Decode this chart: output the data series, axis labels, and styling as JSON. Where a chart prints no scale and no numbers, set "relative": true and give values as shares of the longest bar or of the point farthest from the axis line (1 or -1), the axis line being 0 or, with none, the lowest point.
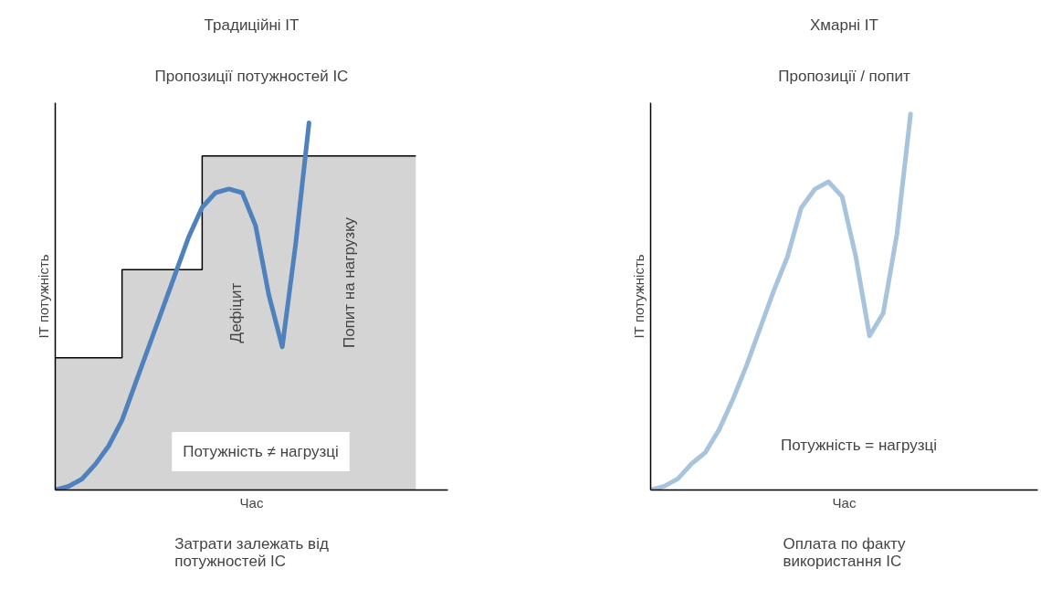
{
  "chart_data": [
    {
      "type": "line",
      "title": "Традиційні ІТ",
      "xlabel": "Час",
      "ylabel": "ІТ потужність",
      "relative": true,
      "categories": [
        null,
        null,
        null,
        null,
        null,
        null,
        null,
        null,
        null,
        null,
        null,
        null,
        null,
        null,
        null,
        null,
        null,
        null,
        null,
        null,
        null,
        null,
        null,
        null,
        null,
        null,
        null,
        null,
        null
      ],
      "series": [
        {
          "type": "area",
          "color": "#d4d4d4",
          "values": [
            0.36,
            0.36,
            0.36,
            0.36,
            0.36,
            0.6,
            0.6,
            0.6,
            0.6,
            0.6,
            0.6,
            0.91,
            0.91,
            0.91,
            0.91,
            0.91,
            0.91,
            0.91,
            0.91,
            0.91,
            0.91,
            0.91,
            0.91,
            0.91,
            0.91,
            0.91,
            0.91,
            0.91,
            null
          ]
        },
        {
          "type": "step",
          "color": "#000000",
          "values": [
            0.36,
            0.36,
            0.36,
            0.36,
            0.36,
            0.6,
            0.6,
            0.6,
            0.6,
            0.6,
            0.6,
            0.91,
            0.91,
            0.91,
            0.91,
            0.91,
            0.91,
            0.91,
            0.91,
            0.91,
            0.91,
            0.91,
            0.91,
            0.91,
            0.91,
            0.91,
            0.91,
            0.91,
            null
          ]
        },
        {
          "color": "#4f81bd",
          "values": [
            0,
            0.01,
            0.03,
            0.07,
            0.12,
            0.19,
            0.29,
            0.39,
            0.49,
            0.59,
            0.69,
            0.77,
            0.81,
            0.82,
            0.81,
            0.72,
            0.53,
            0.39,
            0.67,
            1.0,
            null,
            null,
            null,
            null,
            null,
            null,
            null,
            null,
            null
          ]
        }
      ],
      "annotations": [
        "Пропозиції потужностей ІС",
        "Дефіцит",
        "Попит на нагрузку",
        "Потужність ≠ нагрузці",
        "Затрати залежать від\nпотужностей ІС"
      ]
    },
    {
      "type": "line",
      "title": "Хмарні ІТ",
      "xlabel": "Час",
      "ylabel": "ІТ потужність",
      "relative": true,
      "categories": [
        null,
        null,
        null,
        null,
        null,
        null,
        null,
        null,
        null,
        null,
        null,
        null,
        null,
        null,
        null,
        null,
        null,
        null,
        null,
        null,
        null,
        null,
        null,
        null,
        null,
        null,
        null,
        null,
        null
      ],
      "series": [
        {
          "color": "#a8c4dc",
          "values": [
            0,
            0.01,
            0.03,
            0.07,
            0.1,
            0.16,
            0.24,
            0.33,
            0.43,
            0.53,
            0.62,
            0.75,
            0.8,
            0.82,
            0.78,
            0.62,
            0.41,
            0.47,
            0.68,
            1.0,
            null,
            null,
            null,
            null,
            null,
            null,
            null,
            null,
            null
          ]
        }
      ],
      "annotations": [
        "Пропозиції / попит",
        "Потужність = нагрузці",
        "Оплата по факту\nвикористання ІС"
      ]
    }
  ]
}
